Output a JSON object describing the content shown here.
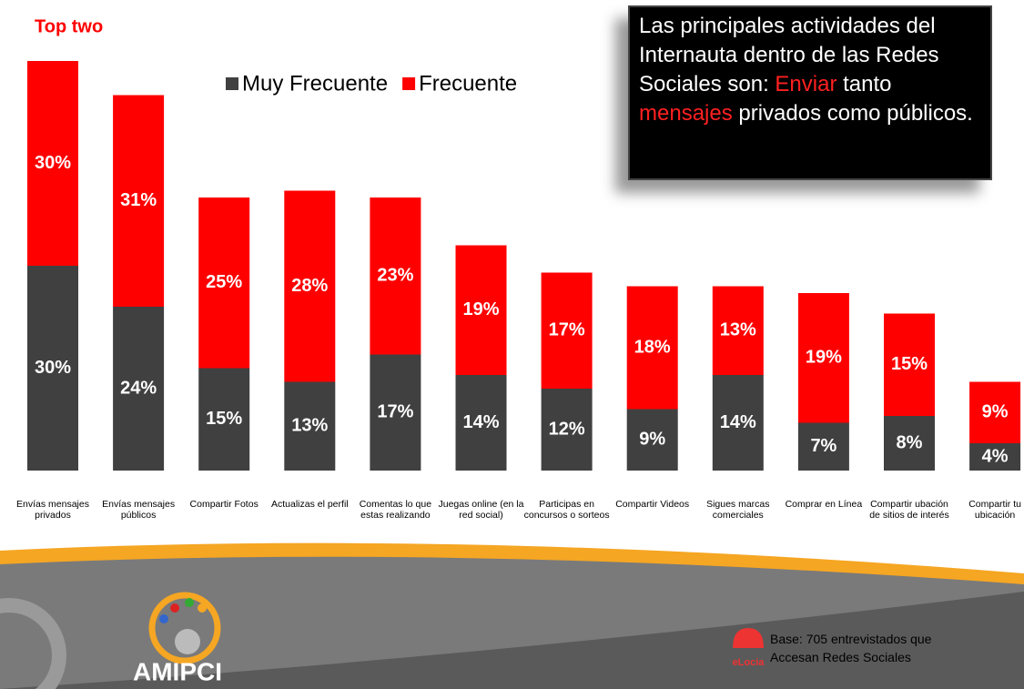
{
  "chart_data": {
    "type": "stacked_bar",
    "title": "Top two",
    "categories": [
      "Envías mensajes privados",
      "Envías mensajes públicos",
      "Compartir Fotos",
      "Actualizas el perfil",
      "Comentas lo que estas realizando",
      "Juegas online (en la red social)",
      "Participas en concursos o sorteos",
      "Compartir Videos",
      "Sigues marcas comerciales",
      "Comprar en Línea",
      "Compartir ubación de sitios de interés",
      "Compartir tu ubicación"
    ],
    "series": [
      {
        "name": "Muy Frecuente",
        "color": "#404040",
        "values": [
          30,
          24,
          15,
          13,
          17,
          14,
          12,
          9,
          14,
          7,
          8,
          4
        ],
        "value_labels": [
          "30%",
          "24%",
          "15%",
          "13%",
          "17%",
          "14%",
          "12%",
          "9%",
          "14%",
          "7%",
          "8%",
          "4%"
        ]
      },
      {
        "name": "Frecuente",
        "color": "#ff0000",
        "values": [
          30,
          31,
          25,
          28,
          23,
          19,
          17,
          18,
          13,
          19,
          15,
          9
        ],
        "value_labels": [
          "30%",
          "31%",
          "25%",
          "28%",
          "23%",
          "19%",
          "17%",
          "18%",
          "13%",
          "19%",
          "15%",
          "9%"
        ]
      }
    ]
  },
  "callout": [
    {
      "text": "Las principales actividades del Internauta dentro de las Redes Sociales son: ",
      "color": "#ffffff"
    },
    {
      "text": "Enviar",
      "color": "#ff2020"
    },
    {
      "text": " tanto ",
      "color": "#ffffff"
    },
    {
      "text": "mensajes",
      "color": "#ff2020"
    },
    {
      "text": " privados como públicos.",
      "color": "#ffffff"
    }
  ],
  "base": "Base: 705 entrevistados que Accesan Redes Sociales",
  "logo": "AMIPCI",
  "logo2": "eLocia"
}
